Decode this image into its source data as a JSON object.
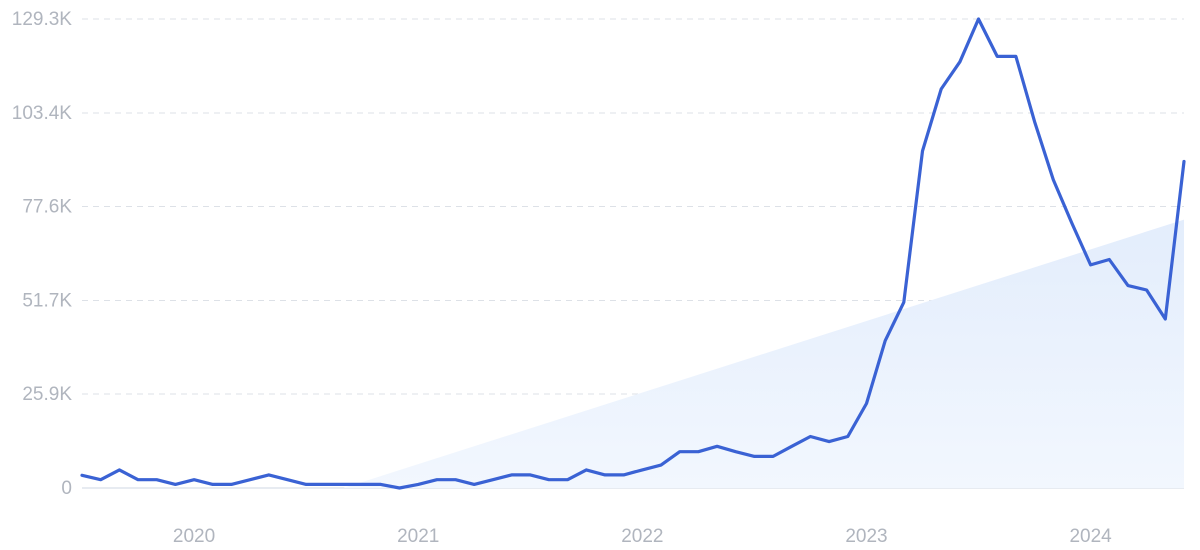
{
  "chart_data": {
    "type": "line",
    "title": "",
    "xlabel": "",
    "ylabel": "",
    "grid": true,
    "legend": "none",
    "ylim": [
      0,
      129300
    ],
    "xlim": [
      "2019-07",
      "2024-06"
    ],
    "y_ticks": [
      {
        "value": 0,
        "label": "0"
      },
      {
        "value": 25900,
        "label": "25.9K"
      },
      {
        "value": 51700,
        "label": "51.7K"
      },
      {
        "value": 77600,
        "label": "77.6K"
      },
      {
        "value": 103400,
        "label": "103.4K"
      },
      {
        "value": 129300,
        "label": "129.3K"
      }
    ],
    "x_ticks": [
      {
        "value": "2020-01",
        "label": "2020"
      },
      {
        "value": "2021-01",
        "label": "2021"
      },
      {
        "value": "2022-01",
        "label": "2022"
      },
      {
        "value": "2023-01",
        "label": "2023"
      },
      {
        "value": "2024-01",
        "label": "2024"
      }
    ],
    "x": [
      "2019-07",
      "2019-08",
      "2019-09",
      "2019-10",
      "2019-11",
      "2019-12",
      "2020-01",
      "2020-02",
      "2020-03",
      "2020-04",
      "2020-05",
      "2020-06",
      "2020-07",
      "2020-08",
      "2020-09",
      "2020-10",
      "2020-11",
      "2020-12",
      "2021-01",
      "2021-02",
      "2021-03",
      "2021-04",
      "2021-05",
      "2021-06",
      "2021-07",
      "2021-08",
      "2021-09",
      "2021-10",
      "2021-11",
      "2021-12",
      "2022-01",
      "2022-02",
      "2022-03",
      "2022-04",
      "2022-05",
      "2022-06",
      "2022-07",
      "2022-08",
      "2022-09",
      "2022-10",
      "2022-11",
      "2022-12",
      "2023-01",
      "2023-02",
      "2023-03",
      "2023-04",
      "2023-05",
      "2023-06",
      "2023-07",
      "2023-08",
      "2023-09",
      "2023-10",
      "2023-11",
      "2023-12",
      "2024-01",
      "2024-02",
      "2024-03",
      "2024-04",
      "2024-05",
      "2024-06"
    ],
    "series": [
      {
        "values": [
          3500,
          2300,
          5000,
          2300,
          2300,
          1000,
          2300,
          1000,
          1000,
          2300,
          3600,
          2300,
          1000,
          1000,
          1000,
          1000,
          1000,
          0,
          1000,
          2300,
          2300,
          1000,
          2300,
          3600,
          3600,
          2300,
          2300,
          5000,
          3600,
          3600,
          5000,
          6300,
          10000,
          10000,
          11500,
          10000,
          8700,
          8700,
          11500,
          14200,
          12800,
          14200,
          23300,
          40600,
          51200,
          92900,
          110000,
          117500,
          129300,
          119000,
          119000,
          101000,
          85000,
          73000,
          61500,
          63000,
          55800,
          54600,
          46600,
          90000
        ]
      }
    ],
    "trend": {
      "start": [
        "2020-09",
        0
      ],
      "end": [
        "2024-06",
        74000
      ]
    },
    "colors": {
      "line": "#3a62d4",
      "trend_fill": "#e9f1fd",
      "grid": "#dde1e7",
      "tick_text": "#b0b5be",
      "baseline": "#cfd7e3"
    }
  }
}
